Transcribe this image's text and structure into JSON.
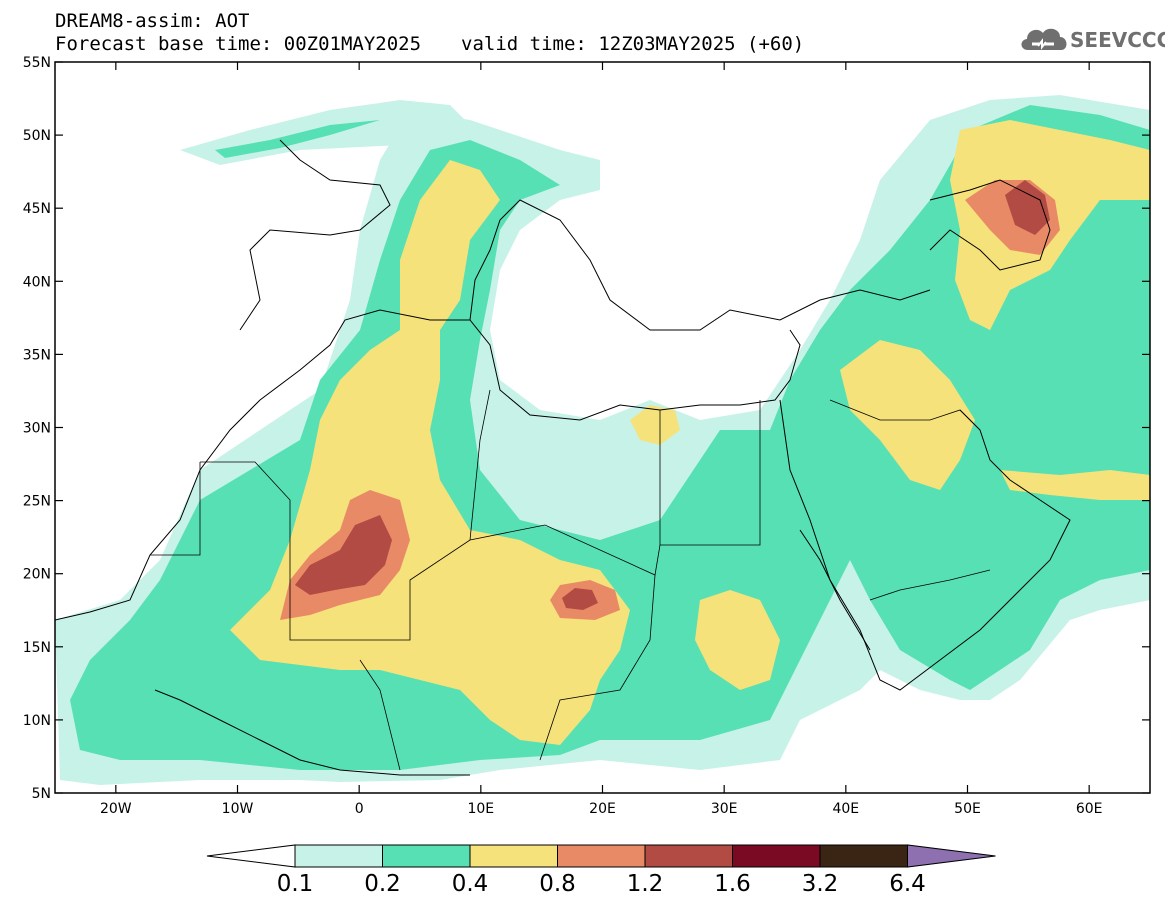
{
  "header": {
    "line1": "DREAM8-assim: AOT",
    "base_time": "Forecast base time: 00Z01MAY2025",
    "valid_time": "valid time: 12Z03MAY2025 (+60)"
  },
  "logo": {
    "text": "SEEVCCC",
    "icon": "cloud-icon",
    "color": "#6f6f6f"
  },
  "map": {
    "lon_range": [
      -25,
      65
    ],
    "lat_range": [
      5,
      55
    ],
    "lat_ticks": [
      "5N",
      "10N",
      "15N",
      "20N",
      "25N",
      "30N",
      "35N",
      "40N",
      "45N",
      "50N",
      "55N"
    ],
    "lon_ticks": [
      "20W",
      "10W",
      "0",
      "10E",
      "20E",
      "30E",
      "40E",
      "50E",
      "60E"
    ]
  },
  "colorbar": {
    "labels": [
      "0.1",
      "0.2",
      "0.4",
      "0.8",
      "1.2",
      "1.6",
      "3.2",
      "6.4"
    ],
    "colors": [
      "#c7f2e8",
      "#57e0b4",
      "#f6e27a",
      "#e98a67",
      "#b24b44",
      "#7a0a24",
      "#3a2414",
      "#8e6fb0"
    ],
    "under_color": "#ffffff"
  }
}
